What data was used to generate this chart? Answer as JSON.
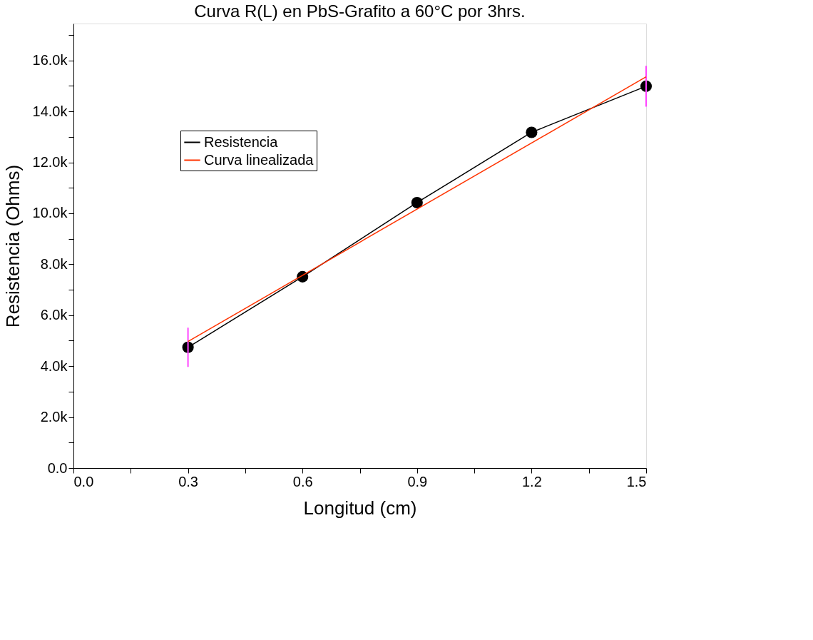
{
  "chart_data": {
    "type": "line",
    "title": "Curva R(L) en PbS-Grafito a 60°C por 3hrs.",
    "xlabel": "Longitud (cm)",
    "ylabel": "Resistencia (Ohms)",
    "x": [
      0.3,
      0.6,
      0.9,
      1.2,
      1.5
    ],
    "series": [
      {
        "name": "Resistencia",
        "color": "#000000",
        "marker": "circle",
        "values": [
          4740,
          7510,
          10420,
          13180,
          14990
        ],
        "errors": [
          770,
          null,
          null,
          null,
          800
        ]
      },
      {
        "name": "Curva linealizada",
        "color": "#ff3300",
        "marker": "none",
        "x": [
          0.3,
          1.5
        ],
        "values": [
          4970,
          15360
        ]
      }
    ],
    "xlim": [
      0,
      1.5
    ],
    "ylim": [
      0,
      17450
    ],
    "xticks": [
      {
        "value": 0,
        "label": "0.0"
      },
      {
        "value": 0.15,
        "label": null
      },
      0.3,
      {
        "value": 0.45,
        "label": null
      },
      0.6,
      {
        "value": 0.75,
        "label": null
      },
      0.9,
      {
        "value": 1.05,
        "label": null
      },
      1.2,
      {
        "value": 1.35,
        "label": null
      },
      1.5
    ],
    "yticks": [
      {
        "value": 0,
        "label": "0.0"
      },
      {
        "value": 1000,
        "label": null
      },
      {
        "value": 2000,
        "label": "2.0k"
      },
      {
        "value": 3000,
        "label": null
      },
      {
        "value": 4000,
        "label": "4.0k"
      },
      {
        "value": 5000,
        "label": null
      },
      {
        "value": 6000,
        "label": "6.0k"
      },
      {
        "value": 7000,
        "label": null
      },
      {
        "value": 8000,
        "label": "8.0k"
      },
      {
        "value": 9000,
        "label": null
      },
      {
        "value": 10000,
        "label": "10.0k"
      },
      {
        "value": 11000,
        "label": null
      },
      {
        "value": 12000,
        "label": "12.0k"
      },
      {
        "value": 13000,
        "label": null
      },
      {
        "value": 14000,
        "label": "14.0k"
      },
      {
        "value": 15000,
        "label": null
      },
      {
        "value": 16000,
        "label": "16.0k"
      },
      {
        "value": 17000,
        "label": null
      }
    ],
    "grid": false,
    "legend": "top left"
  }
}
